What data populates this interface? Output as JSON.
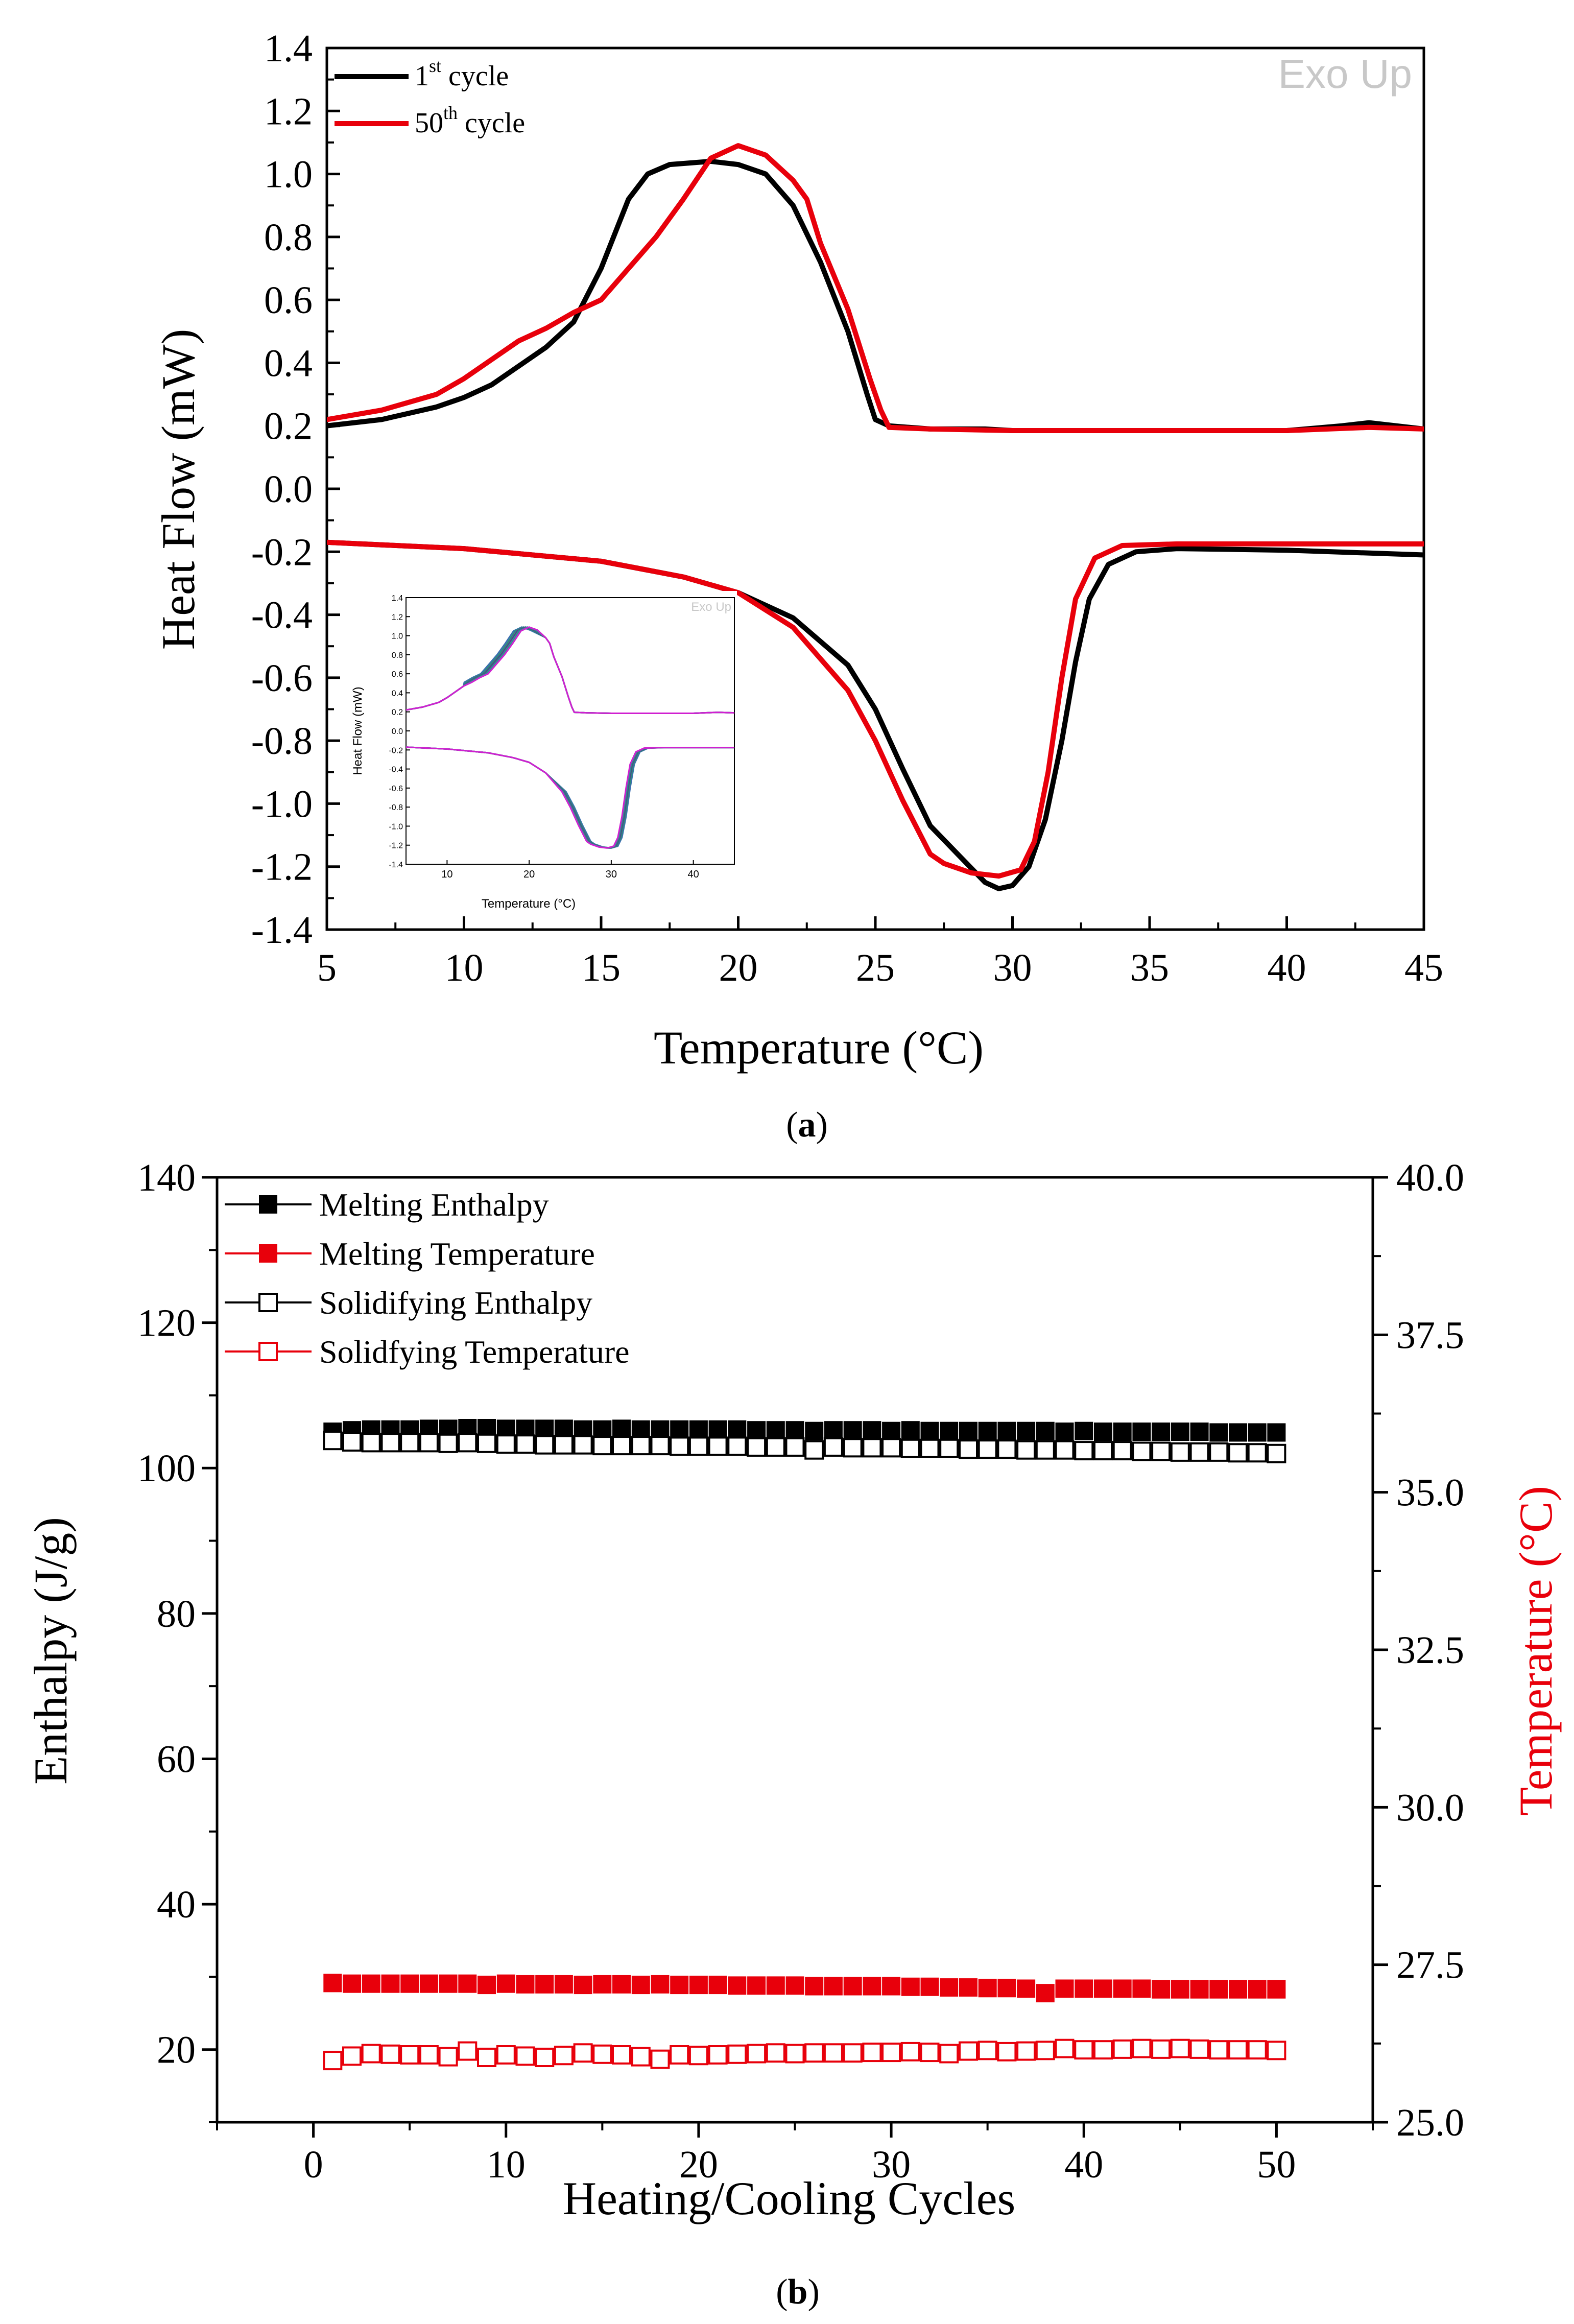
{
  "colors": {
    "black": "#000000",
    "red": "#e8000b",
    "inset_blue": "#3b6fb0",
    "inset_teal": "#2e8b7a",
    "inset_magenta": "#d020d0",
    "watermark": "#c8c8c8"
  },
  "chart_data": [
    {
      "id": "a",
      "type": "line",
      "caption": "a",
      "xlabel": "Temperature (°C)",
      "ylabel": "Heat Flow (mW)",
      "xlim": [
        5,
        45
      ],
      "ylim": [
        -1.4,
        1.4
      ],
      "x_ticks": [
        "5",
        "10",
        "15",
        "20",
        "25",
        "30",
        "35",
        "40",
        "45"
      ],
      "y_ticks": [
        "1.4",
        "1.2",
        "1.0",
        "0.8",
        "0.6",
        "0.4",
        "0.2",
        "0.0",
        "-0.2",
        "-0.4",
        "-0.6",
        "-0.8",
        "-1.0",
        "-1.2",
        "-1.4"
      ],
      "watermark": "Exo Up",
      "legend_position": "top-left",
      "series": [
        {
          "name": "1st cycle",
          "label_base": "1",
          "label_sup": "st",
          "label_rest": " cycle",
          "color": "#000000",
          "heating": [
            [
              5,
              0.2
            ],
            [
              7,
              0.22
            ],
            [
              9,
              0.26
            ],
            [
              10,
              0.29
            ],
            [
              11,
              0.33
            ],
            [
              12,
              0.39
            ],
            [
              13,
              0.45
            ],
            [
              14,
              0.53
            ],
            [
              15,
              0.7
            ],
            [
              16,
              0.92
            ],
            [
              16.7,
              1.0
            ],
            [
              17.5,
              1.03
            ],
            [
              19,
              1.04
            ],
            [
              20,
              1.03
            ],
            [
              21,
              1.0
            ],
            [
              22,
              0.9
            ],
            [
              23,
              0.72
            ],
            [
              24,
              0.5
            ],
            [
              24.7,
              0.3
            ],
            [
              25,
              0.22
            ],
            [
              25.5,
              0.2
            ],
            [
              27,
              0.19
            ],
            [
              29,
              0.19
            ],
            [
              30,
              0.185
            ],
            [
              35,
              0.185
            ],
            [
              40,
              0.185
            ],
            [
              42,
              0.2
            ],
            [
              43,
              0.21
            ],
            [
              44,
              0.2
            ],
            [
              45,
              0.19
            ]
          ],
          "cooling": [
            [
              5,
              -0.17
            ],
            [
              10,
              -0.19
            ],
            [
              15,
              -0.23
            ],
            [
              18,
              -0.28
            ],
            [
              20,
              -0.33
            ],
            [
              22,
              -0.41
            ],
            [
              24,
              -0.56
            ],
            [
              25,
              -0.7
            ],
            [
              26,
              -0.89
            ],
            [
              27,
              -1.07
            ],
            [
              28,
              -1.16
            ],
            [
              29,
              -1.25
            ],
            [
              29.5,
              -1.27
            ],
            [
              30,
              -1.26
            ],
            [
              30.6,
              -1.2
            ],
            [
              31.2,
              -1.05
            ],
            [
              31.8,
              -0.8
            ],
            [
              32.3,
              -0.55
            ],
            [
              32.8,
              -0.35
            ],
            [
              33.5,
              -0.24
            ],
            [
              34.5,
              -0.2
            ],
            [
              36,
              -0.19
            ],
            [
              40,
              -0.195
            ],
            [
              45,
              -0.21
            ]
          ]
        },
        {
          "name": "50th cycle",
          "label_base": "50",
          "label_sup": "th",
          "label_rest": " cycle",
          "color": "#e8000b",
          "heating": [
            [
              5,
              0.22
            ],
            [
              7,
              0.25
            ],
            [
              9,
              0.3
            ],
            [
              10,
              0.35
            ],
            [
              11,
              0.41
            ],
            [
              12,
              0.47
            ],
            [
              13,
              0.51
            ],
            [
              14,
              0.56
            ],
            [
              15,
              0.6
            ],
            [
              16,
              0.7
            ],
            [
              17,
              0.8
            ],
            [
              18,
              0.92
            ],
            [
              19,
              1.05
            ],
            [
              20,
              1.09
            ],
            [
              21,
              1.06
            ],
            [
              22,
              0.98
            ],
            [
              22.5,
              0.92
            ],
            [
              23,
              0.78
            ],
            [
              24,
              0.57
            ],
            [
              24.8,
              0.35
            ],
            [
              25.2,
              0.25
            ],
            [
              25.5,
              0.195
            ],
            [
              27,
              0.19
            ],
            [
              30,
              0.185
            ],
            [
              35,
              0.185
            ],
            [
              40,
              0.185
            ],
            [
              43,
              0.195
            ],
            [
              45,
              0.19
            ]
          ],
          "cooling": [
            [
              5,
              -0.17
            ],
            [
              10,
              -0.19
            ],
            [
              15,
              -0.23
            ],
            [
              18,
              -0.28
            ],
            [
              20,
              -0.33
            ],
            [
              22,
              -0.44
            ],
            [
              24,
              -0.64
            ],
            [
              25,
              -0.8
            ],
            [
              26,
              -0.99
            ],
            [
              27,
              -1.16
            ],
            [
              27.5,
              -1.19
            ],
            [
              28.5,
              -1.22
            ],
            [
              29.5,
              -1.23
            ],
            [
              30.3,
              -1.21
            ],
            [
              30.8,
              -1.12
            ],
            [
              31.3,
              -0.9
            ],
            [
              31.8,
              -0.6
            ],
            [
              32.3,
              -0.35
            ],
            [
              33,
              -0.22
            ],
            [
              34,
              -0.18
            ],
            [
              36,
              -0.175
            ],
            [
              40,
              -0.175
            ],
            [
              45,
              -0.175
            ]
          ]
        }
      ],
      "inset": {
        "xlabel": "Temperature (°C)",
        "ylabel": "Heat Flow (mW)",
        "watermark": "Exo Up",
        "xlim": [
          5,
          45
        ],
        "ylim": [
          -1.4,
          1.4
        ],
        "x_ticks": [
          "10",
          "20",
          "30",
          "40"
        ],
        "y_ticks": [
          "1.4",
          "1.2",
          "1.0",
          "0.8",
          "0.6",
          "0.4",
          "0.2",
          "0.0",
          "-0.2",
          "-0.4",
          "-0.6",
          "-0.8",
          "-1.0",
          "-1.2",
          "-1.4"
        ]
      }
    },
    {
      "id": "b",
      "type": "scatter",
      "caption": "b",
      "xlabel": "Heating/Cooling Cycles",
      "ylabel_left": "Enthalpy (J/g)",
      "ylabel_right": "Temperature (°C)",
      "xlim": [
        -5,
        55
      ],
      "ylim_left": [
        10,
        140
      ],
      "ylim_right": [
        25,
        40
      ],
      "x_ticks": [
        "0",
        "10",
        "20",
        "30",
        "40",
        "50"
      ],
      "y_ticks_left": [
        "20",
        "40",
        "60",
        "80",
        "100",
        "120",
        "140"
      ],
      "y_ticks_right": [
        "25.0",
        "27.5",
        "30.0",
        "32.5",
        "35.0",
        "37.5",
        "40.0"
      ],
      "legend_position": "top-left",
      "series": [
        {
          "name": "Melting Enthalpy",
          "axis": "left",
          "marker": "filled",
          "color": "#000000",
          "values": [
            105.0,
            105.2,
            105.3,
            105.3,
            105.3,
            105.4,
            105.4,
            105.5,
            105.5,
            105.4,
            105.4,
            105.4,
            105.4,
            105.3,
            105.3,
            105.4,
            105.3,
            105.3,
            105.3,
            105.3,
            105.3,
            105.3,
            105.2,
            105.2,
            105.2,
            105.1,
            105.2,
            105.2,
            105.2,
            105.1,
            105.2,
            105.1,
            105.1,
            105.1,
            105.1,
            105.1,
            105.1,
            105.1,
            105.0,
            105.1,
            105.0,
            105.0,
            105.0,
            105.0,
            105.0,
            105.0,
            104.9,
            104.9,
            104.9,
            104.9
          ]
        },
        {
          "name": "Melting Temperature",
          "axis": "right",
          "marker": "filled",
          "color": "#e8000b",
          "values": [
            27.21,
            27.2,
            27.2,
            27.2,
            27.2,
            27.2,
            27.2,
            27.2,
            27.18,
            27.2,
            27.19,
            27.19,
            27.19,
            27.18,
            27.19,
            27.19,
            27.18,
            27.19,
            27.18,
            27.18,
            27.18,
            27.17,
            27.17,
            27.17,
            27.17,
            27.16,
            27.16,
            27.16,
            27.16,
            27.16,
            27.15,
            27.15,
            27.14,
            27.14,
            27.13,
            27.13,
            27.12,
            27.05,
            27.12,
            27.12,
            27.12,
            27.12,
            27.12,
            27.11,
            27.11,
            27.11,
            27.11,
            27.11,
            27.11,
            27.11
          ]
        },
        {
          "name": "Solidifying Enthalpy",
          "axis": "left",
          "marker": "open",
          "color": "#000000",
          "values": [
            103.8,
            103.6,
            103.5,
            103.5,
            103.5,
            103.5,
            103.4,
            103.5,
            103.4,
            103.3,
            103.3,
            103.2,
            103.2,
            103.2,
            103.1,
            103.1,
            103.1,
            103.1,
            103.0,
            103.0,
            103.0,
            103.0,
            102.9,
            102.9,
            102.9,
            102.5,
            102.9,
            102.8,
            102.8,
            102.8,
            102.7,
            102.7,
            102.7,
            102.6,
            102.6,
            102.6,
            102.5,
            102.5,
            102.5,
            102.4,
            102.4,
            102.4,
            102.3,
            102.3,
            102.2,
            102.2,
            102.2,
            102.1,
            102.1,
            102.0
          ]
        },
        {
          "name": "Solidfying Temperature",
          "axis": "right",
          "marker": "open",
          "color": "#e8000b",
          "values": [
            25.98,
            26.05,
            26.09,
            26.08,
            26.07,
            26.07,
            26.04,
            26.13,
            26.03,
            26.07,
            26.05,
            26.03,
            26.06,
            26.1,
            26.08,
            26.07,
            26.04,
            26.0,
            26.07,
            26.06,
            26.07,
            26.08,
            26.09,
            26.1,
            26.09,
            26.1,
            26.1,
            26.1,
            26.11,
            26.11,
            26.12,
            26.11,
            26.09,
            26.13,
            26.14,
            26.12,
            26.13,
            26.14,
            26.17,
            26.15,
            26.15,
            26.16,
            26.17,
            26.16,
            26.17,
            26.16,
            26.15,
            26.15,
            26.15,
            26.14
          ]
        }
      ]
    }
  ]
}
